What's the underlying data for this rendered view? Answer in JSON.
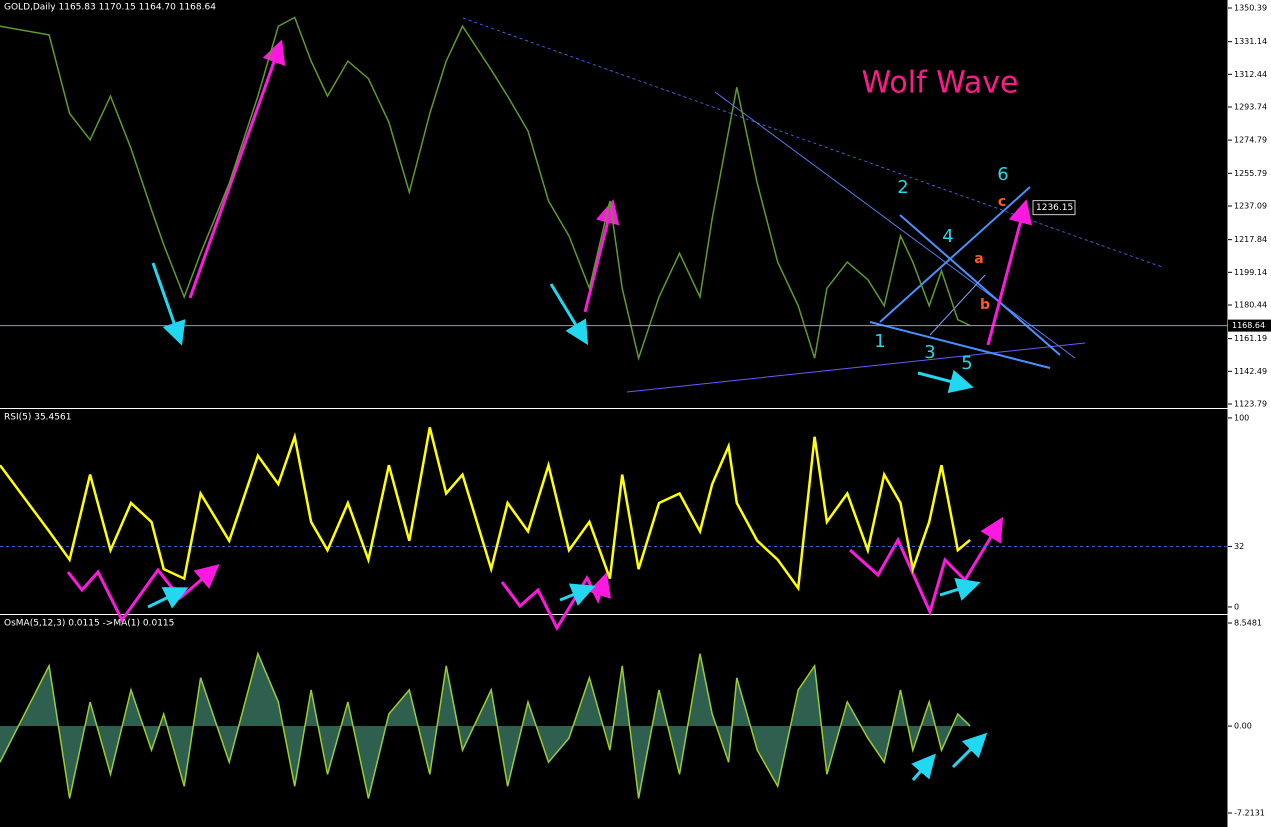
{
  "chart_data": [
    {
      "type": "line",
      "header": "GOLD,Daily  1165.83 1170.15 1164.70 1168.64",
      "color": "#5f9a2e",
      "xlim": [
        0,
        300
      ],
      "x": [
        0,
        12,
        17,
        22,
        27,
        32,
        37,
        40,
        45,
        49,
        56,
        63,
        68,
        72,
        76,
        80,
        85,
        90,
        95,
        100,
        105,
        109,
        113,
        120,
        124,
        129,
        134,
        139,
        144,
        149,
        152,
        156,
        161,
        166,
        171,
        174,
        178,
        180,
        185,
        190,
        195,
        199,
        202,
        207,
        212,
        216,
        220,
        223,
        227,
        230,
        234,
        237
      ],
      "values": [
        1340,
        1335,
        1290,
        1275,
        1300,
        1270,
        1235,
        1215,
        1185,
        1210,
        1250,
        1300,
        1340,
        1345,
        1320,
        1300,
        1320,
        1310,
        1285,
        1245,
        1290,
        1320,
        1340,
        1315,
        1300,
        1280,
        1240,
        1220,
        1190,
        1240,
        1190,
        1150,
        1185,
        1210,
        1185,
        1230,
        1280,
        1305,
        1250,
        1205,
        1180,
        1150,
        1190,
        1205,
        1195,
        1180,
        1220,
        1205,
        1180,
        1200,
        1172,
        1168.64
      ],
      "ylim": [
        1122.07,
        1354.97
      ],
      "yticks": [
        1350.39,
        1331.14,
        1312.44,
        1293.74,
        1274.79,
        1255.79,
        1237.09,
        1217.84,
        1199.14,
        1180.44,
        1161.19,
        1142.49,
        1123.79
      ],
      "last_price": 1168.64,
      "target_price": 1236.15,
      "title": "Wolf Wave",
      "points": [
        "1",
        "2",
        "3",
        "4",
        "5",
        "6"
      ],
      "waves": [
        "a",
        "b",
        "c"
      ]
    },
    {
      "type": "line",
      "header": "RSI(5) 35.4561",
      "color": "#ffff00",
      "xlim": [
        0,
        300
      ],
      "x": [
        0,
        12,
        17,
        22,
        27,
        32,
        37,
        40,
        45,
        49,
        56,
        63,
        68,
        72,
        76,
        80,
        85,
        90,
        95,
        100,
        105,
        109,
        113,
        120,
        124,
        129,
        134,
        139,
        144,
        149,
        152,
        156,
        161,
        166,
        171,
        174,
        178,
        180,
        185,
        190,
        195,
        199,
        202,
        207,
        212,
        216,
        220,
        223,
        227,
        230,
        234,
        237
      ],
      "values": [
        75,
        40,
        25,
        70,
        30,
        55,
        45,
        20,
        15,
        60,
        35,
        80,
        65,
        90,
        45,
        30,
        55,
        25,
        75,
        35,
        95,
        60,
        70,
        20,
        55,
        40,
        75,
        30,
        45,
        15,
        70,
        20,
        55,
        60,
        40,
        65,
        85,
        55,
        35,
        25,
        10,
        90,
        45,
        60,
        30,
        70,
        55,
        20,
        45,
        75,
        30,
        35.4561
      ],
      "ylim": [
        -3.2,
        104.2
      ],
      "yticks": [
        0,
        32,
        100
      ],
      "level": 32
    },
    {
      "type": "area",
      "header": "OsMA(5,12,3) 0.0115  ->MA(1) 0.0115",
      "color": "#9acd32",
      "xlim": [
        0,
        300
      ],
      "x": [
        0,
        12,
        17,
        22,
        27,
        32,
        37,
        40,
        45,
        49,
        56,
        63,
        68,
        72,
        76,
        80,
        85,
        90,
        95,
        100,
        105,
        109,
        113,
        120,
        124,
        129,
        134,
        139,
        144,
        149,
        152,
        156,
        161,
        166,
        171,
        174,
        178,
        180,
        185,
        190,
        195,
        199,
        202,
        207,
        212,
        216,
        220,
        223,
        227,
        230,
        234,
        237
      ],
      "values": [
        -3,
        5,
        -6,
        2,
        -4,
        3,
        -2,
        1,
        -5,
        4,
        -3,
        6,
        2,
        -5,
        3,
        -4,
        2,
        -6,
        1,
        3,
        -4,
        5,
        -2,
        3,
        -5,
        2,
        -3,
        -1,
        4,
        -2,
        5,
        -6,
        3,
        -4,
        6,
        1,
        -3,
        4,
        -2,
        -5,
        3,
        5,
        -4,
        2,
        -1,
        -3,
        3,
        -2,
        2,
        -2,
        1,
        0.0115
      ],
      "ylim": [
        -7.96,
        9.13
      ],
      "yticks": [
        8.5481,
        {
          "value": 0,
          "label": "0.00"
        },
        -7.2131
      ]
    }
  ]
}
